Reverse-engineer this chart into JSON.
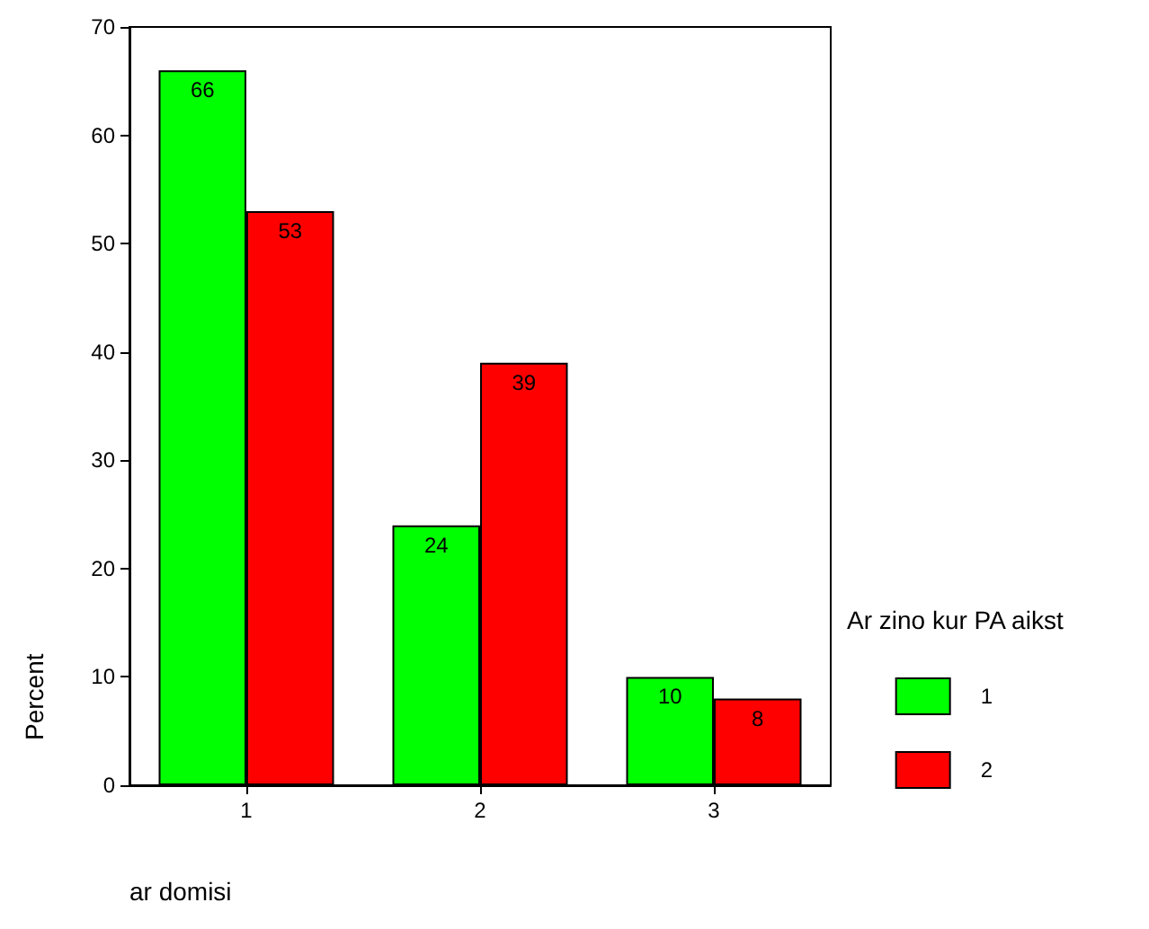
{
  "chart_data": {
    "type": "bar",
    "xlabel": "ar domisi",
    "ylabel": "Percent",
    "legend_title": "Ar zino kur PA aikst",
    "categories": [
      "1",
      "2",
      "3"
    ],
    "series": [
      {
        "name": "1",
        "color": "#00ff00",
        "values": [
          66,
          24,
          10
        ]
      },
      {
        "name": "2",
        "color": "#ff0000",
        "values": [
          53,
          39,
          8
        ]
      }
    ],
    "ylim": [
      0,
      70
    ],
    "yticks": [
      0,
      10,
      20,
      30,
      40,
      50,
      60,
      70
    ],
    "data_labels": true,
    "grid": false,
    "legend": "right"
  }
}
